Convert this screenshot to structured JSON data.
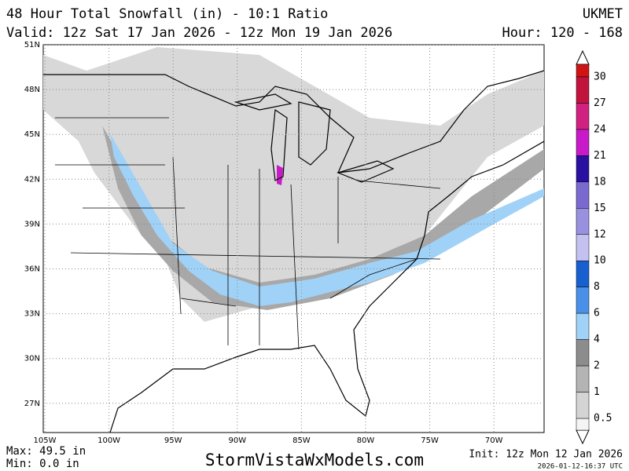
{
  "header": {
    "title": "48 Hour Total Snowfall (in) - 10:1 Ratio",
    "model": "UKMET",
    "valid": "Valid: 12z Sat 17 Jan 2026 - 12z Mon 19 Jan 2026",
    "hour": "Hour: 120 - 168"
  },
  "map": {
    "lat_labels": [
      "51N",
      "48N",
      "45N",
      "42N",
      "39N",
      "36N",
      "33N",
      "30N",
      "27N"
    ],
    "lon_labels": [
      "105W",
      "100W",
      "95W",
      "90W",
      "85W",
      "80W",
      "75W",
      "70W"
    ]
  },
  "legend": {
    "levels": [
      {
        "label": "30",
        "color": "#d01414"
      },
      {
        "label": "27",
        "color": "#c0143c"
      },
      {
        "label": "24",
        "color": "#d02080"
      },
      {
        "label": "21",
        "color": "#c81ac8"
      },
      {
        "label": "18",
        "color": "#2a10a0"
      },
      {
        "label": "15",
        "color": "#7a6ad0"
      },
      {
        "label": "12",
        "color": "#9a90e0"
      },
      {
        "label": "10",
        "color": "#c4c0f0"
      },
      {
        "label": "8",
        "color": "#1860d0"
      },
      {
        "label": "6",
        "color": "#4a90e8"
      },
      {
        "label": "4",
        "color": "#a0d2f8"
      },
      {
        "label": "2",
        "color": "#8c8c8c"
      },
      {
        "label": "1",
        "color": "#b4b4b4"
      },
      {
        "label": "0.5",
        "color": "#d4d4d4"
      }
    ]
  },
  "footer": {
    "max": "Max: 49.5 in",
    "min": "Min: 0.0 in",
    "site": "StormVistaWxModels.com",
    "init": "Init: 12z Mon 12 Jan 2026",
    "stamp": "2026-01-12-16:37 UTC"
  }
}
